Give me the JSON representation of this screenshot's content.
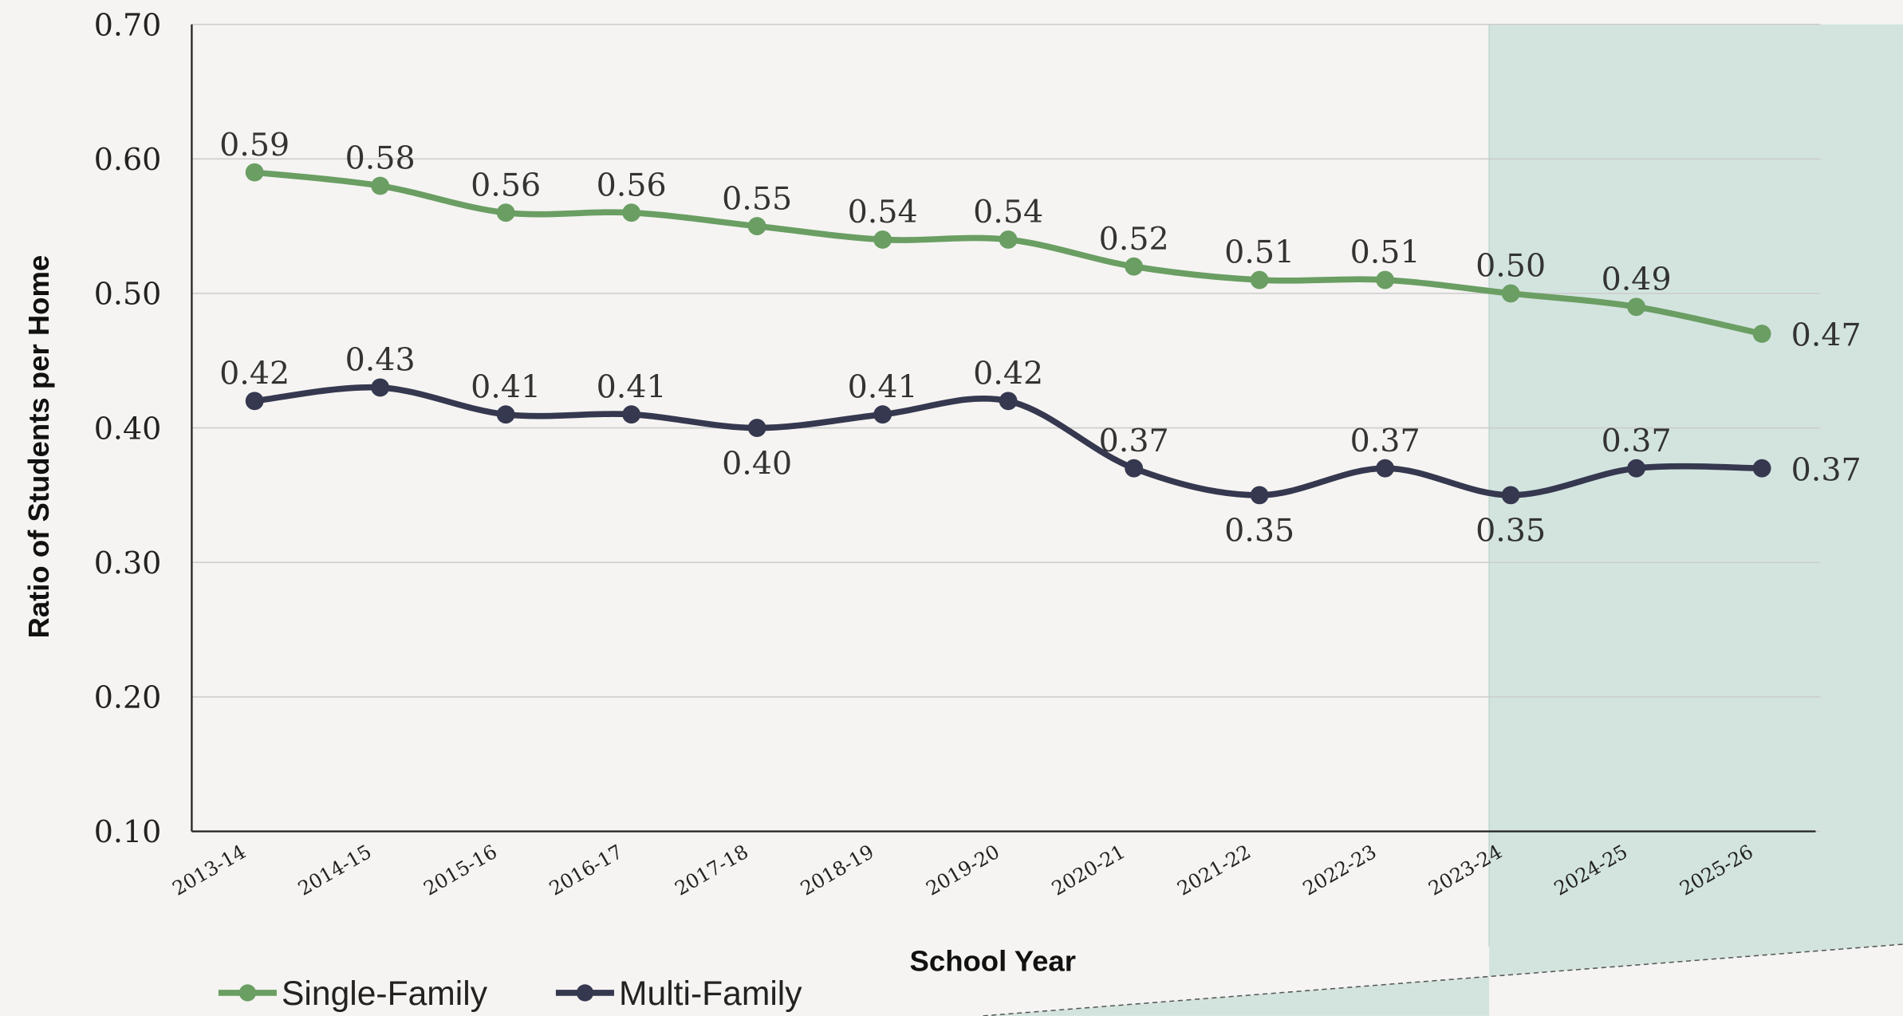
{
  "chart_data": {
    "type": "line",
    "x_label": "School Year",
    "y_label": "Ratio of Students per Home",
    "categories": [
      "2013-14",
      "2014-15",
      "2015-16",
      "2016-17",
      "2017-18",
      "2018-19",
      "2019-20",
      "2020-21",
      "2021-22",
      "2022-23",
      "2023-24",
      "2024-25",
      "2025-26"
    ],
    "series": [
      {
        "name": "Single-Family",
        "color": "#6a9e63",
        "values": [
          0.59,
          0.58,
          0.56,
          0.56,
          0.55,
          0.54,
          0.54,
          0.52,
          0.51,
          0.51,
          0.5,
          0.49,
          0.47
        ],
        "value_labels": [
          "0.59",
          "0.58",
          "0.56",
          "0.56",
          "0.55",
          "0.54",
          "0.54",
          "0.52",
          "0.51",
          "0.51",
          "0.50",
          "0.49",
          "0.47"
        ]
      },
      {
        "name": "Multi-Family",
        "color": "#35384f",
        "values": [
          0.42,
          0.43,
          0.41,
          0.41,
          0.4,
          0.41,
          0.42,
          0.37,
          0.35,
          0.37,
          0.35,
          0.37,
          0.37
        ],
        "value_labels": [
          "0.42",
          "0.43",
          "0.41",
          "0.41",
          "0.40",
          "0.41",
          "0.42",
          "0.37",
          "0.35",
          "0.37",
          "0.35",
          "0.37",
          "0.37"
        ]
      }
    ],
    "ylim": [
      0.1,
      0.7
    ],
    "yticks": [
      {
        "value": 0.1,
        "label": "0.10"
      },
      {
        "value": 0.2,
        "label": "0.20"
      },
      {
        "value": 0.3,
        "label": "0.30"
      },
      {
        "value": 0.4,
        "label": "0.40"
      },
      {
        "value": 0.5,
        "label": "0.50"
      },
      {
        "value": 0.6,
        "label": "0.60"
      },
      {
        "value": 0.7,
        "label": "0.70"
      }
    ],
    "grid": true,
    "legend": "bottom-left"
  }
}
